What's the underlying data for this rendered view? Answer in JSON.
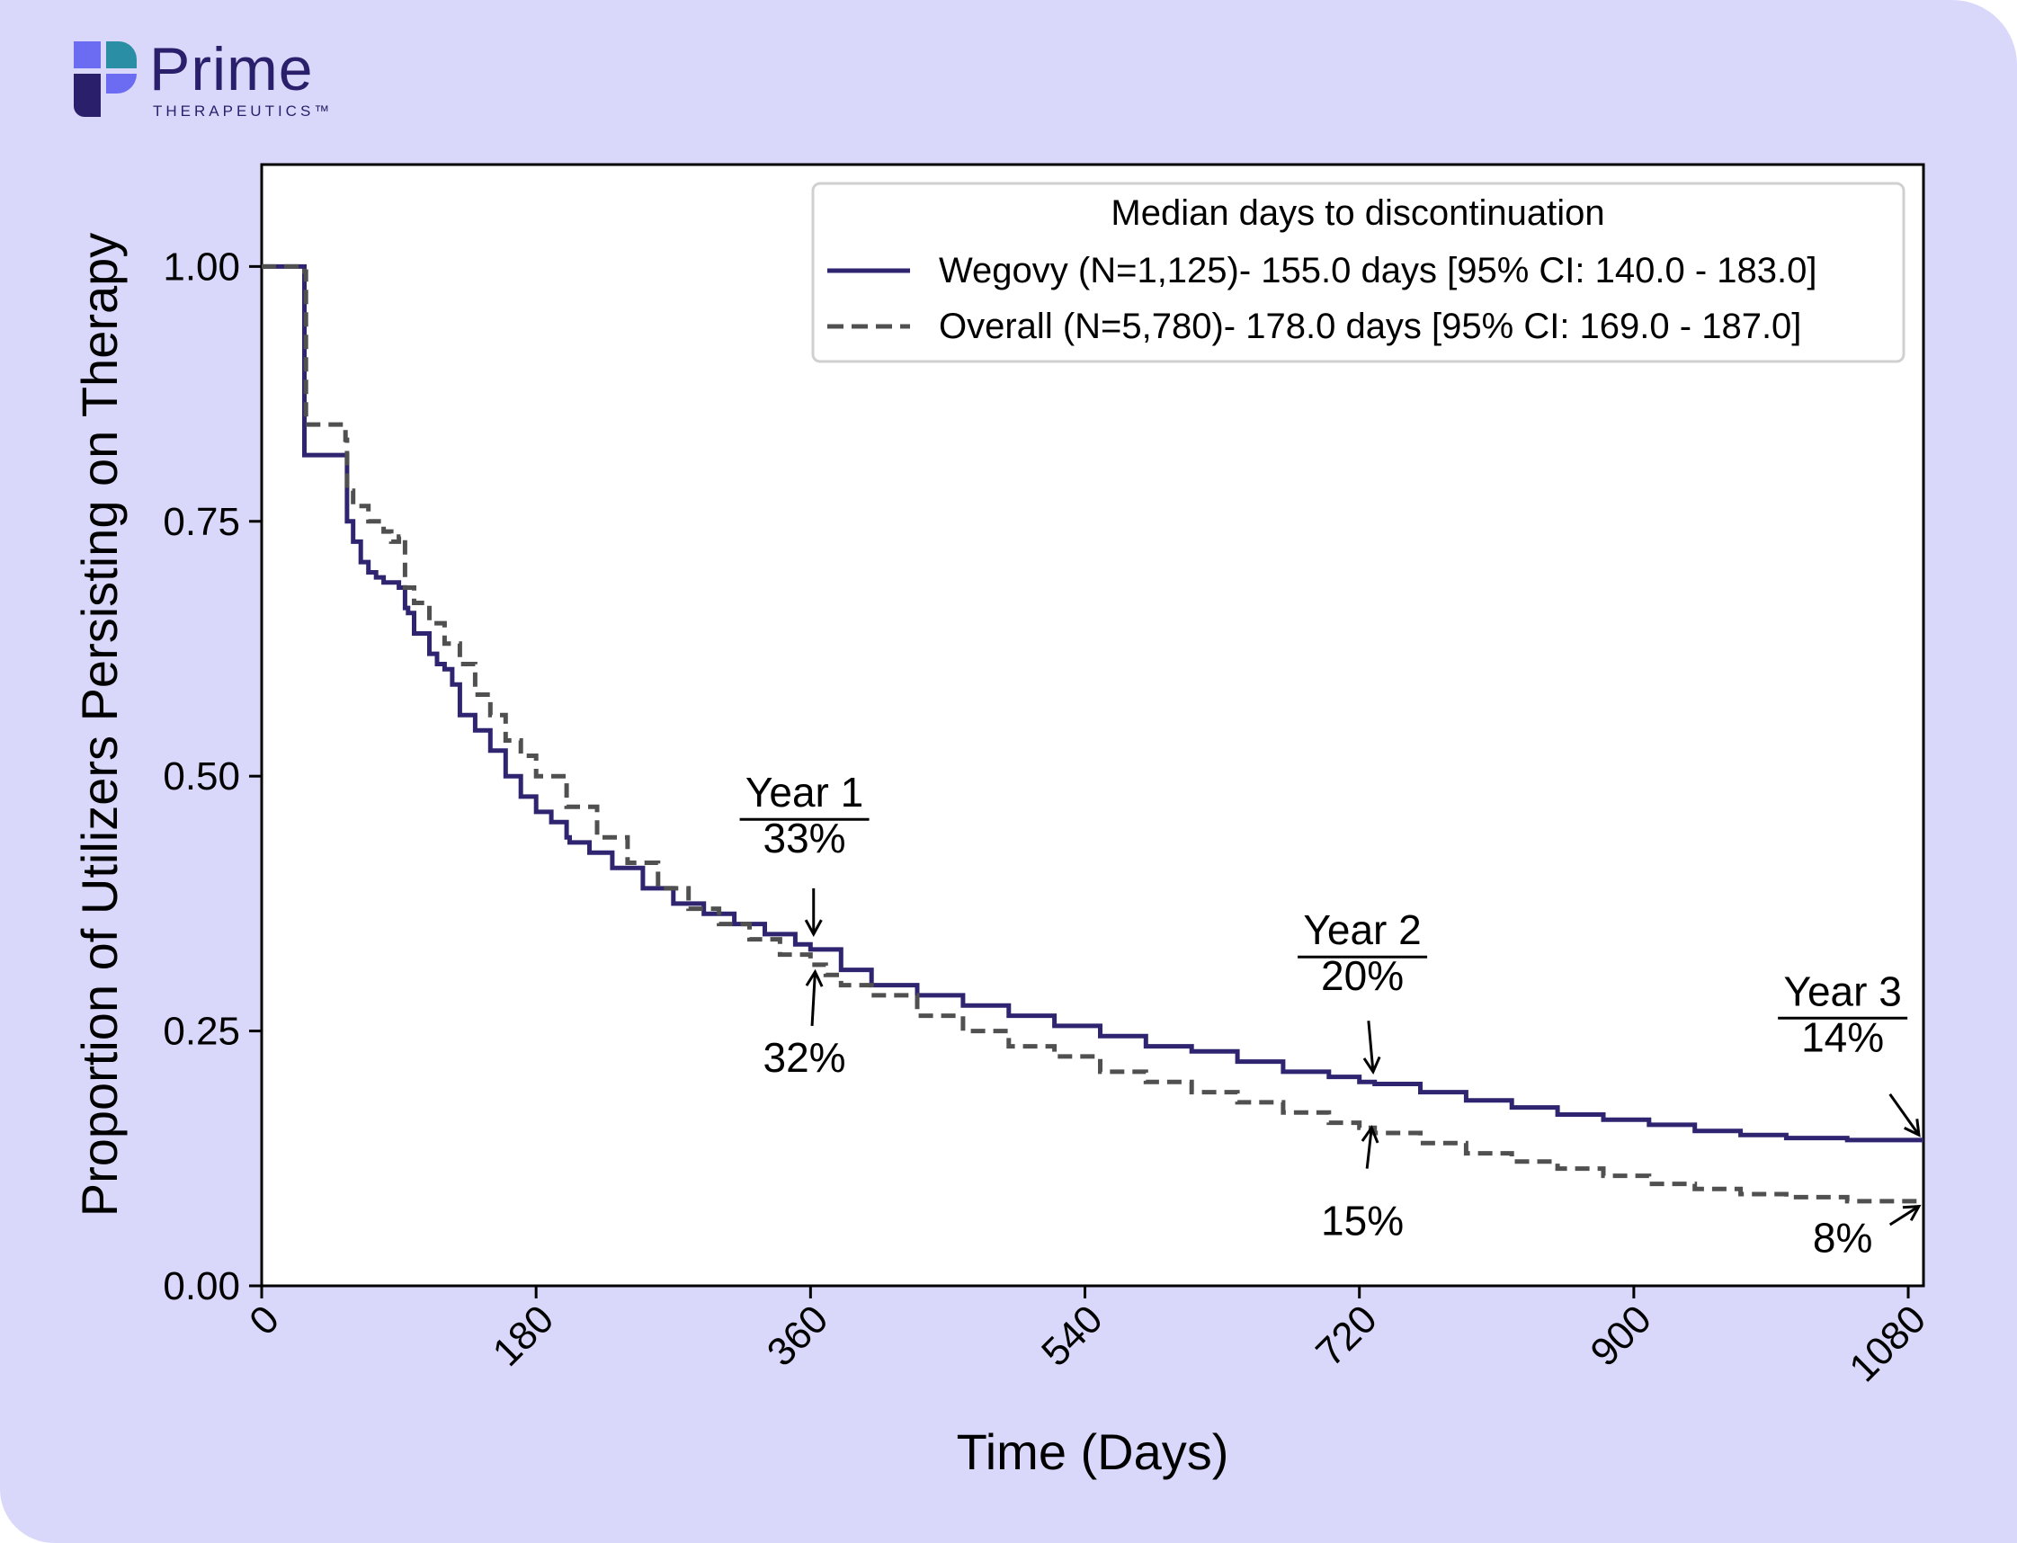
{
  "brand": {
    "name": "Prime",
    "sub": "THERAPEUTICS™",
    "colors": {
      "dark": "#2a1f6b",
      "blue": "#6b6cf2",
      "teal": "#2a8ea4",
      "frame": "#d9d8fb"
    }
  },
  "chart_data": {
    "type": "line",
    "xlabel": "Time (Days)",
    "ylabel": "Proportion of Utilizers Persisting on Therapy",
    "xlim": [
      0,
      1090
    ],
    "ylim": [
      0,
      1.1
    ],
    "xticks": [
      "0",
      "180",
      "360",
      "540",
      "720",
      "900",
      "1080"
    ],
    "xtick_values": [
      0,
      180,
      360,
      540,
      720,
      900,
      1080
    ],
    "yticks": [
      "0.00",
      "0.25",
      "0.50",
      "0.75",
      "1.00"
    ],
    "ytick_values": [
      0,
      0.25,
      0.5,
      0.75,
      1.0
    ],
    "grid": false,
    "legend": {
      "title": "Median days to discontinuation",
      "placement": "top-right",
      "entries": [
        "Wegovy (N=1,125)- 155.0 days [95% CI: 140.0 - 183.0]",
        "Overall (N=5,780)- 178.0 days [95% CI: 169.0 - 187.0]"
      ]
    },
    "series": [
      {
        "name": "Wegovy (N=1,125)- 155.0 days [95% CI: 140.0 - 183.0]",
        "color": "#2e2470",
        "style": "solid",
        "x": [
          0,
          28,
          28,
          55,
          56,
          60,
          65,
          70,
          75,
          80,
          85,
          90,
          94,
          96,
          100,
          110,
          115,
          120,
          125,
          130,
          140,
          150,
          160,
          170,
          180,
          190,
          200,
          202,
          215,
          230,
          250,
          270,
          290,
          310,
          330,
          350,
          360,
          380,
          400,
          430,
          460,
          490,
          520,
          550,
          580,
          610,
          640,
          670,
          700,
          720,
          730,
          760,
          790,
          820,
          850,
          880,
          910,
          940,
          970,
          1000,
          1040,
          1090
        ],
        "y": [
          1.0,
          0.995,
          0.815,
          0.815,
          0.75,
          0.73,
          0.71,
          0.7,
          0.695,
          0.69,
          0.69,
          0.685,
          0.665,
          0.66,
          0.64,
          0.62,
          0.61,
          0.605,
          0.59,
          0.56,
          0.545,
          0.525,
          0.5,
          0.48,
          0.465,
          0.455,
          0.44,
          0.435,
          0.425,
          0.41,
          0.39,
          0.375,
          0.365,
          0.355,
          0.345,
          0.335,
          0.33,
          0.31,
          0.295,
          0.285,
          0.275,
          0.265,
          0.255,
          0.245,
          0.235,
          0.23,
          0.22,
          0.21,
          0.205,
          0.2,
          0.198,
          0.19,
          0.182,
          0.175,
          0.168,
          0.163,
          0.158,
          0.152,
          0.148,
          0.145,
          0.143,
          0.143
        ]
      },
      {
        "name": "Overall (N=5,780)- 178.0 days [95% CI: 169.0 - 187.0]",
        "color": "#505050",
        "style": "dashed",
        "x": [
          0,
          28,
          29,
          55,
          56,
          60,
          70,
          80,
          85,
          90,
          94,
          100,
          110,
          120,
          130,
          140,
          150,
          160,
          170,
          180,
          200,
          220,
          240,
          260,
          280,
          300,
          320,
          340,
          360,
          370,
          380,
          400,
          430,
          460,
          490,
          520,
          550,
          580,
          610,
          640,
          670,
          700,
          720,
          730,
          760,
          790,
          820,
          850,
          880,
          910,
          940,
          970,
          1000,
          1040,
          1090
        ],
        "y": [
          1.0,
          0.995,
          0.845,
          0.83,
          0.78,
          0.765,
          0.75,
          0.74,
          0.73,
          0.735,
          0.685,
          0.67,
          0.65,
          0.63,
          0.61,
          0.58,
          0.56,
          0.535,
          0.52,
          0.5,
          0.47,
          0.44,
          0.415,
          0.39,
          0.37,
          0.355,
          0.34,
          0.325,
          0.315,
          0.305,
          0.295,
          0.285,
          0.265,
          0.25,
          0.235,
          0.225,
          0.21,
          0.2,
          0.19,
          0.18,
          0.17,
          0.16,
          0.155,
          0.15,
          0.14,
          0.13,
          0.122,
          0.115,
          0.108,
          0.1,
          0.095,
          0.09,
          0.087,
          0.083,
          0.082
        ]
      }
    ],
    "annotations": [
      {
        "text": "Year 1",
        "underline": true,
        "x": 356,
        "y": 0.47
      },
      {
        "text": "33%",
        "x": 356,
        "y": 0.425
      },
      {
        "text": "32%",
        "x": 356,
        "y": 0.21
      },
      {
        "text": "Year 2",
        "underline": true,
        "x": 722,
        "y": 0.335
      },
      {
        "text": "20%",
        "x": 722,
        "y": 0.29
      },
      {
        "text": "15%",
        "x": 722,
        "y": 0.05
      },
      {
        "text": "Year 3",
        "underline": true,
        "x": 1037,
        "y": 0.275
      },
      {
        "text": "14%",
        "x": 1037,
        "y": 0.23
      },
      {
        "text": "8%",
        "x": 1037,
        "y": 0.033
      }
    ],
    "arrows": [
      {
        "from": [
          362,
          0.39
        ],
        "to": [
          362,
          0.345
        ]
      },
      {
        "from": [
          361,
          0.255
        ],
        "to": [
          363,
          0.308
        ]
      },
      {
        "from": [
          726,
          0.26
        ],
        "to": [
          729,
          0.21
        ]
      },
      {
        "from": [
          725,
          0.115
        ],
        "to": [
          728,
          0.155
        ]
      },
      {
        "from": [
          1068,
          0.188
        ],
        "to": [
          1087,
          0.148
        ]
      },
      {
        "from": [
          1068,
          0.06
        ],
        "to": [
          1087,
          0.078
        ]
      }
    ]
  }
}
